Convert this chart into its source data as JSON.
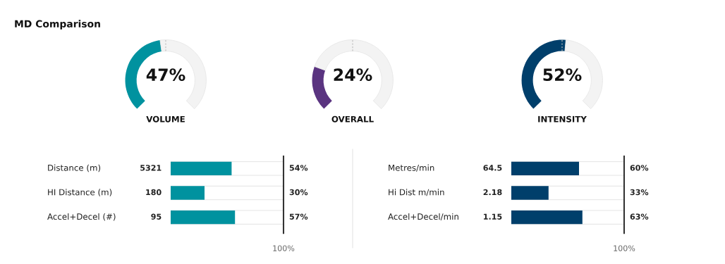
{
  "chart_data": [
    {
      "type": "donut",
      "title": "MD Comparison",
      "xlabel": "VOLUME",
      "categories": [
        null,
        null
      ],
      "values": [
        47,
        53
      ],
      "colors": [
        "#00929f",
        "#f3f3f3"
      ],
      "annotations": [
        "47%"
      ]
    },
    {
      "type": "donut",
      "xlabel": "OVERALL",
      "categories": [
        null,
        null
      ],
      "values": [
        24,
        76
      ],
      "colors": [
        "#5a3480",
        "#f3f3f3"
      ],
      "annotations": [
        "24%"
      ]
    },
    {
      "type": "donut",
      "xlabel": "INTENSITY",
      "categories": [
        null,
        null
      ],
      "values": [
        52,
        48
      ],
      "colors": [
        "#003f6b",
        "#f3f3f3"
      ],
      "annotations": [
        "52%"
      ]
    },
    {
      "type": "bar",
      "orientation": "horizontal",
      "categories": [
        "Distance (m)",
        "HI Distance (m)",
        "Accel+Decel (#)"
      ],
      "values": [
        54,
        30,
        57
      ],
      "color": "#00929f",
      "value_labels": [
        "54%",
        "30%",
        "57%"
      ],
      "xlim": [
        0,
        100
      ],
      "xticks": [
        {
          "value": 100,
          "label": "100%"
        }
      ],
      "ref_lines": [
        {
          "axis": "x",
          "value": 100,
          "color": "#333333"
        }
      ],
      "annotations": [
        "5321",
        "180",
        "95"
      ]
    },
    {
      "type": "bar",
      "orientation": "horizontal",
      "categories": [
        "Metres/min",
        "Hi Dist m/min",
        "Accel+Decel/min"
      ],
      "values": [
        60,
        33,
        63
      ],
      "color": "#003f6b",
      "value_labels": [
        "60%",
        "33%",
        "63%"
      ],
      "xlim": [
        0,
        100
      ],
      "xticks": [
        {
          "value": 100,
          "label": "100%"
        }
      ],
      "ref_lines": [
        {
          "axis": "x",
          "value": 100,
          "color": "#333333"
        }
      ],
      "annotations": [
        "64.5",
        "2.18",
        "1.15"
      ]
    }
  ]
}
